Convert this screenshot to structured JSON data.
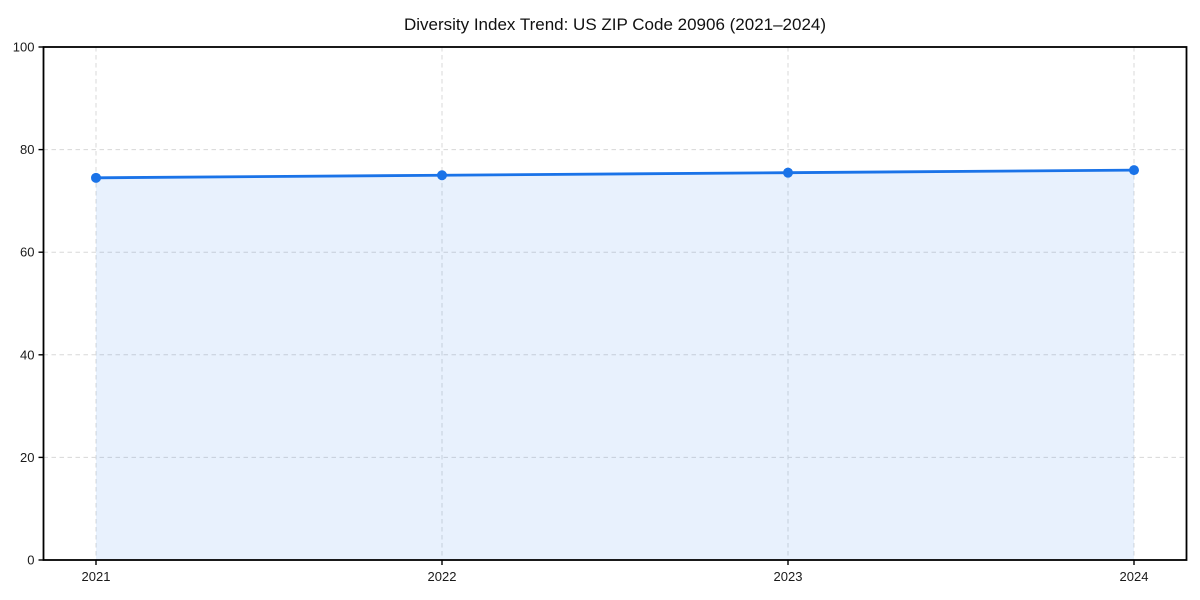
{
  "figure": {
    "background": "#ffffff",
    "plot_background": "#ffffff"
  },
  "chart_data": {
    "type": "line",
    "title": "Diversity Index Trend: US ZIP Code 20906 (2021–2024)",
    "x_categories": [
      "2021",
      "2022",
      "2023",
      "2024"
    ],
    "series": [
      {
        "name": "Diversity Index",
        "values": [
          74.5,
          75.0,
          75.5,
          76.0
        ],
        "line_color": "#1a73e8",
        "line_width": 2.8,
        "marker": "circle",
        "marker_size": 5,
        "area_fill": true,
        "fill_color": "#1a73e8",
        "fill_opacity": 0.1
      }
    ],
    "xlabel": "",
    "ylabel": "",
    "ylim": [
      0,
      100
    ],
    "yticks": [
      0,
      20,
      40,
      60,
      80,
      100
    ],
    "grid": true,
    "grid_style": "dashed",
    "grid_color": "#d8d8d8",
    "axis_color": "#000000",
    "tick_label_color": "#1a1a1a",
    "legend_position": "none"
  }
}
